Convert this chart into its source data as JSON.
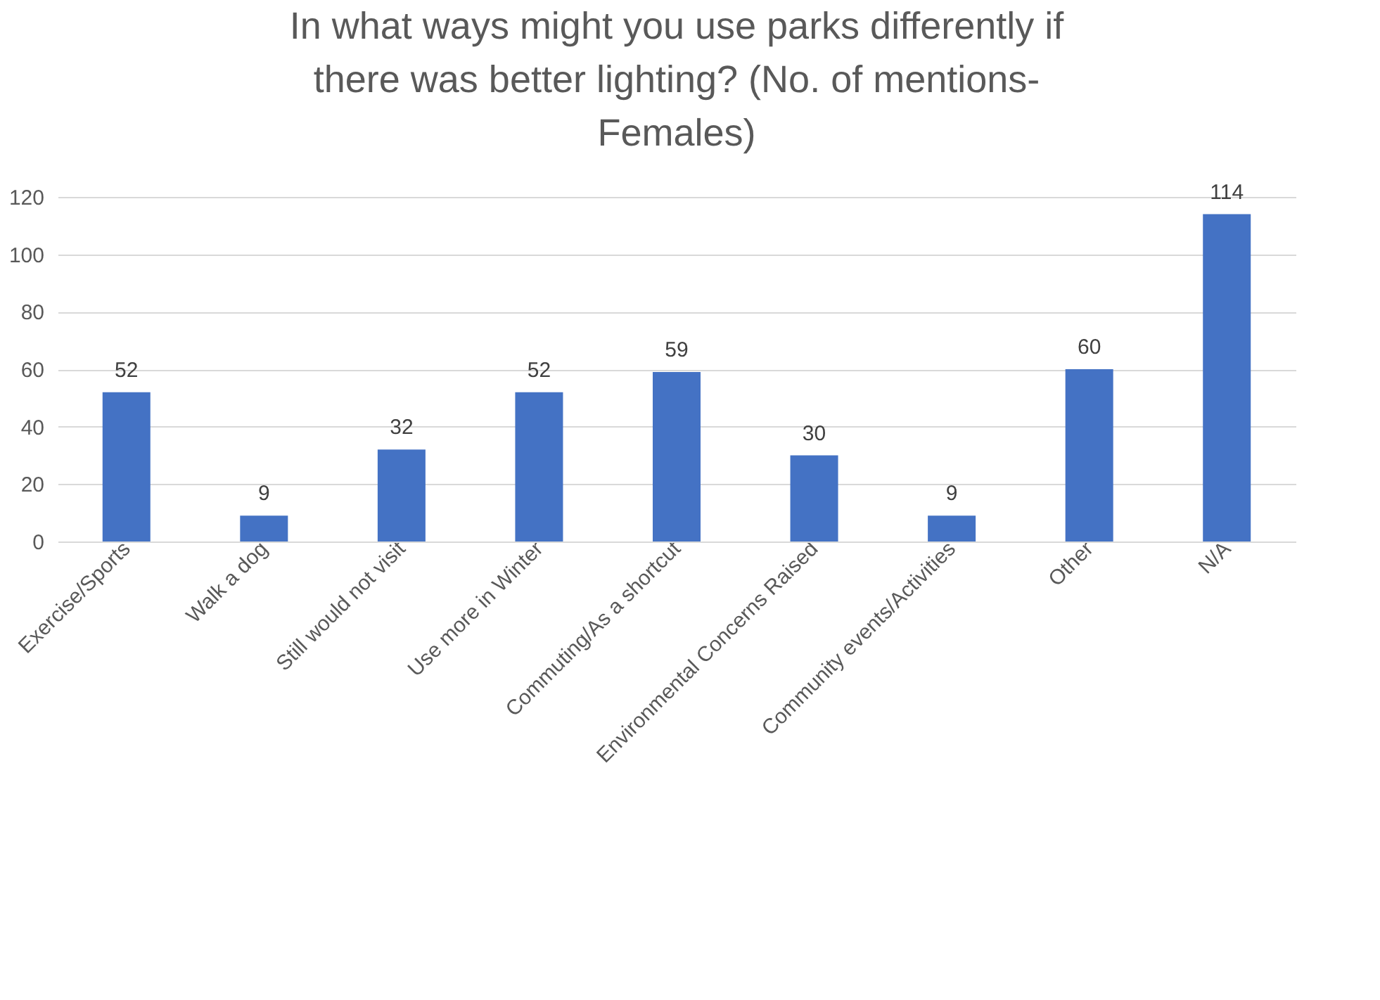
{
  "chart_data": {
    "type": "bar",
    "title": "In what ways might you use parks differently if there was better lighting? (No. of mentions-Females)",
    "categories": [
      "Exercise/Sports",
      "Walk a dog",
      "Still would not visit",
      "Use more in Winter",
      "Commuting/As a shortcut",
      "Environmental Concerns Raised",
      "Community events/Activities",
      "Other",
      "N/A"
    ],
    "values": [
      52,
      9,
      32,
      52,
      59,
      30,
      9,
      60,
      114
    ],
    "color": "#4472c4",
    "ylim": [
      0,
      120
    ],
    "yticks": [
      0,
      20,
      40,
      60,
      80,
      100,
      120
    ],
    "grid": "y",
    "data_labels": true
  }
}
